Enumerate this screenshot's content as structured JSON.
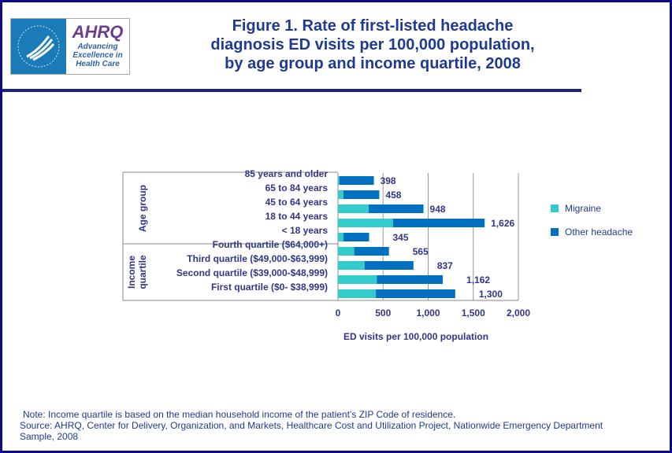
{
  "header": {
    "logo_text": [
      "Advancing",
      "Excellence in",
      "Health Care"
    ],
    "logo_brand": "AHRQ",
    "title_lines": [
      "Figure 1. Rate of first-listed headache",
      "diagnosis ED visits per 100,000 population,",
      "by age group and income quartile, 2008"
    ]
  },
  "chart_data": {
    "type": "bar",
    "orientation": "horizontal",
    "stacked": true,
    "title": "Figure 1. Rate of first-listed headache diagnosis ED visits per 100,000 population, by age group and income quartile, 2008",
    "xlabel": "ED visits per 100,000 population",
    "xlim": [
      0,
      2000
    ],
    "xticks": [
      "0",
      "500",
      "1,000",
      "1,500",
      "2,000"
    ],
    "grid": true,
    "legend": "right",
    "groups": [
      {
        "label": "Age group",
        "count": 5
      },
      {
        "label": "Income quartile",
        "count": 4
      }
    ],
    "categories": [
      "85 years and older",
      "65 to 84 years",
      "45 to 64 years",
      "18 to 44 years",
      "< 18 years",
      "Fourth quartile ($64,000+)",
      "Third quartile ($49,000-$63,999)",
      "Second quartile ($39,000-$48,999)",
      "First quartile ($0- $38,999)"
    ],
    "series": [
      {
        "name": "Migraine",
        "color": "#33cccc",
        "values": [
          15,
          60,
          340,
          610,
          60,
          180,
          295,
          430,
          420
        ]
      },
      {
        "name": "Other headache",
        "color": "#0070c0",
        "values": [
          383,
          398,
          608,
          1016,
          285,
          385,
          542,
          732,
          880
        ]
      }
    ],
    "totals": [
      398,
      458,
      948,
      1626,
      345,
      565,
      837,
      1162,
      1300
    ],
    "total_labels": [
      "398",
      "458",
      "948",
      "1,626",
      "345",
      "565",
      "837",
      "1,162",
      "1,300"
    ]
  },
  "notes": {
    "note": "Note: Income quartile is based on the median household income of the patient’s ZIP Code of residence.",
    "source": "Source: AHRQ, Center for Delivery, Organization, and Markets, Healthcare Cost and Utilization Project, Nationwide Emergency Department Sample, 2008"
  }
}
